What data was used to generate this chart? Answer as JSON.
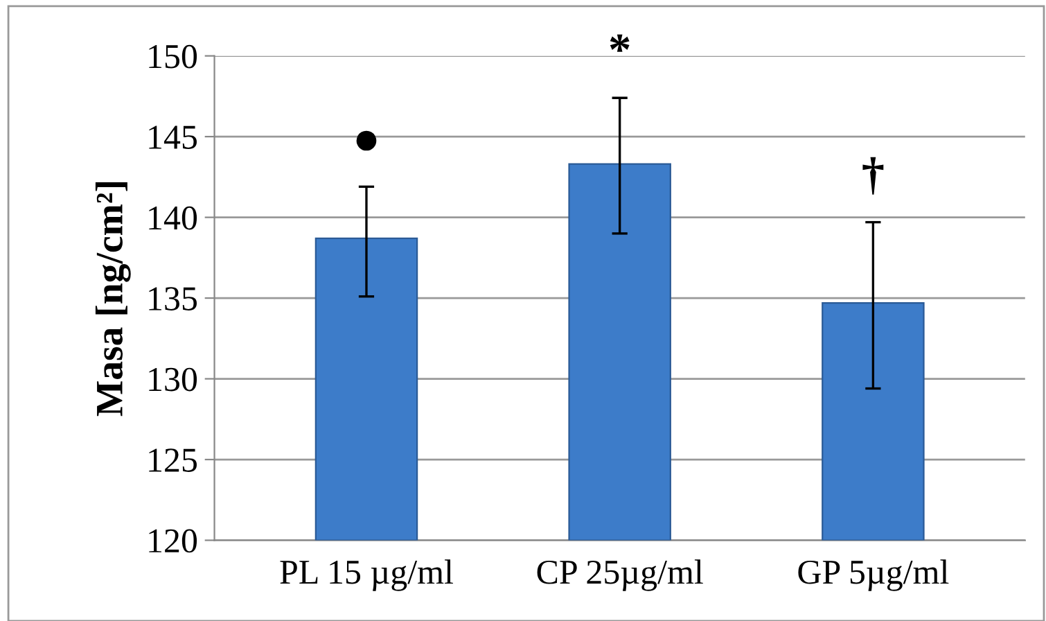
{
  "chart_data": {
    "type": "bar",
    "ylabel": "Masa [ng/cm²]",
    "categories": [
      "PL 15 µg/ml",
      "CP 25µg/ml",
      "GP 5µg/ml"
    ],
    "values": [
      138.7,
      143.3,
      134.7
    ],
    "color": "#3d7cc9",
    "errors": [
      [
        135.1,
        141.9
      ],
      [
        139.0,
        147.4
      ],
      [
        129.4,
        139.7
      ]
    ],
    "ylim": [
      120,
      150
    ],
    "yticks": [
      120,
      125,
      130,
      135,
      140,
      145,
      150
    ],
    "grid": "y",
    "annotations": [
      "●",
      "*",
      "†"
    ]
  }
}
